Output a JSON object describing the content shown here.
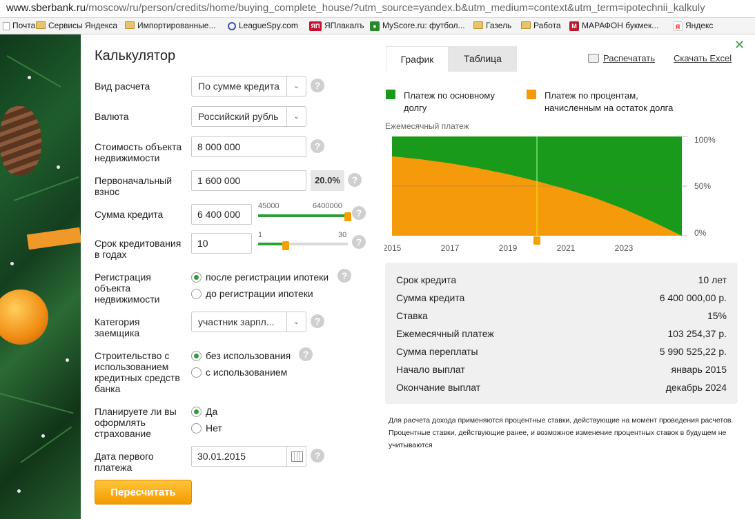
{
  "browser": {
    "url_host": "www.sberbank.ru",
    "url_path": "/moscow/ru/person/credits/home/buying_complete_house/?utm_source=yandex.b&utm_medium=context&utm_term=ipotechnii_kalkuly",
    "bookmarks": [
      {
        "label": "Почта",
        "icon": "page-icon"
      },
      {
        "label": "Сервисы Яндекса",
        "icon": "folder-icon"
      },
      {
        "label": "Импортированные...",
        "icon": "folder-icon"
      },
      {
        "label": "LeagueSpy.com",
        "icon": "search-icon"
      },
      {
        "label": "ЯПлакалъ",
        "icon": "yap-icon"
      },
      {
        "label": "MyScore.ru: футбол...",
        "icon": "myscore-icon"
      },
      {
        "label": "Газель",
        "icon": "folder-icon"
      },
      {
        "label": "Работа",
        "icon": "folder-icon"
      },
      {
        "label": "МАРАФОН букмек...",
        "icon": "marathon-icon"
      },
      {
        "label": "Яндекс",
        "icon": "yandex-icon"
      }
    ]
  },
  "calc": {
    "title": "Калькулятор",
    "calc_type": {
      "label": "Вид расчета",
      "value": "По сумме кредита"
    },
    "currency": {
      "label": "Валюта",
      "value": "Российский рубль"
    },
    "property_cost": {
      "label": "Стоимость объекта недвижимости",
      "value": "8 000 000"
    },
    "down_payment": {
      "label": "Первоначальный взнос",
      "value": "1 600 000",
      "percent": "20.0%"
    },
    "loan_amount": {
      "label": "Сумма кредита",
      "value": "6 400 000",
      "min": "45000",
      "max": "6400000",
      "level_fraction": 1.0
    },
    "term": {
      "label": "Срок кредитования в годах",
      "value": "10",
      "min": "1",
      "max": "30",
      "level_fraction": 0.31
    },
    "registration": {
      "label": "Регистрация объекта недвижимости",
      "options": [
        "после регистрации ипотеки",
        "до регистрации ипотеки"
      ],
      "selected": 0
    },
    "borrower_category": {
      "label": "Категория заемщика",
      "value": "участник зарпл..."
    },
    "construction": {
      "label": "Строительство с использованием кредитных средств банка",
      "options": [
        "без использования",
        "с использованием"
      ],
      "selected": 0
    },
    "insurance": {
      "label": "Планируете ли вы оформлять страхование",
      "options": [
        "Да",
        "Нет"
      ],
      "selected": 0
    },
    "first_payment_date": {
      "label": "Дата первого платежа",
      "value": "30.01.2015"
    },
    "help_symbol": "?",
    "recalc_button": "Пересчитать"
  },
  "results": {
    "tabs": [
      "График",
      "Таблица"
    ],
    "active_tab": 0,
    "print_label": "Распечатать",
    "excel_label": "Скачать Excel",
    "legend": [
      {
        "label": "Платеж по основному долгу",
        "color": "#1a9a1a"
      },
      {
        "label": "Платеж по процентам, начисленным на остаток долга",
        "color": "#f59a0b"
      }
    ],
    "summary": [
      {
        "label": "Срок кредита",
        "value": "10 лет"
      },
      {
        "label": "Сумма кредита",
        "value": "6 400 000,00 р."
      },
      {
        "label": "Ставка",
        "value": "15%"
      },
      {
        "label": "Ежемесячный платеж",
        "value": "103 254,37 р."
      },
      {
        "label": "Сумма переплаты",
        "value": "5 990 525,22 р."
      },
      {
        "label": "Начало выплат",
        "value": "январь 2015"
      },
      {
        "label": "Окончание выплат",
        "value": "декабрь 2024"
      }
    ],
    "note": "Для расчета дохода применяются процентные ставки, действующие на момент проведения расчетов. Процентные ставки, действующие ранее, и возможное изменение процентных ставок в будущем не учитываются"
  },
  "chart_data": {
    "type": "area",
    "title": "Ежемесячный платеж",
    "x_tick_labels": [
      "2015",
      "2017",
      "2019",
      "2021",
      "2023"
    ],
    "y_tick_labels": [
      "100%",
      "50%",
      "0%"
    ],
    "ylim": [
      0,
      100
    ],
    "xlim": [
      2015,
      2025
    ],
    "colors": {
      "principal": "#1a9a1a",
      "interest": "#f59a0b"
    },
    "series": [
      {
        "name": "Платеж по процентам, начисленным на остаток долга",
        "x": [
          2015,
          2016,
          2017,
          2018,
          2019,
          2020,
          2021,
          2022,
          2023,
          2024,
          2025
        ],
        "values": [
          80,
          77,
          73,
          68,
          62,
          55,
          47,
          38,
          27,
          14,
          0
        ]
      },
      {
        "name": "Платеж по основному долгу",
        "x": [
          2015,
          2016,
          2017,
          2018,
          2019,
          2020,
          2021,
          2022,
          2023,
          2024,
          2025
        ],
        "values": [
          20,
          23,
          27,
          32,
          38,
          45,
          53,
          62,
          73,
          86,
          100
        ]
      }
    ],
    "marker_x": 2020
  }
}
